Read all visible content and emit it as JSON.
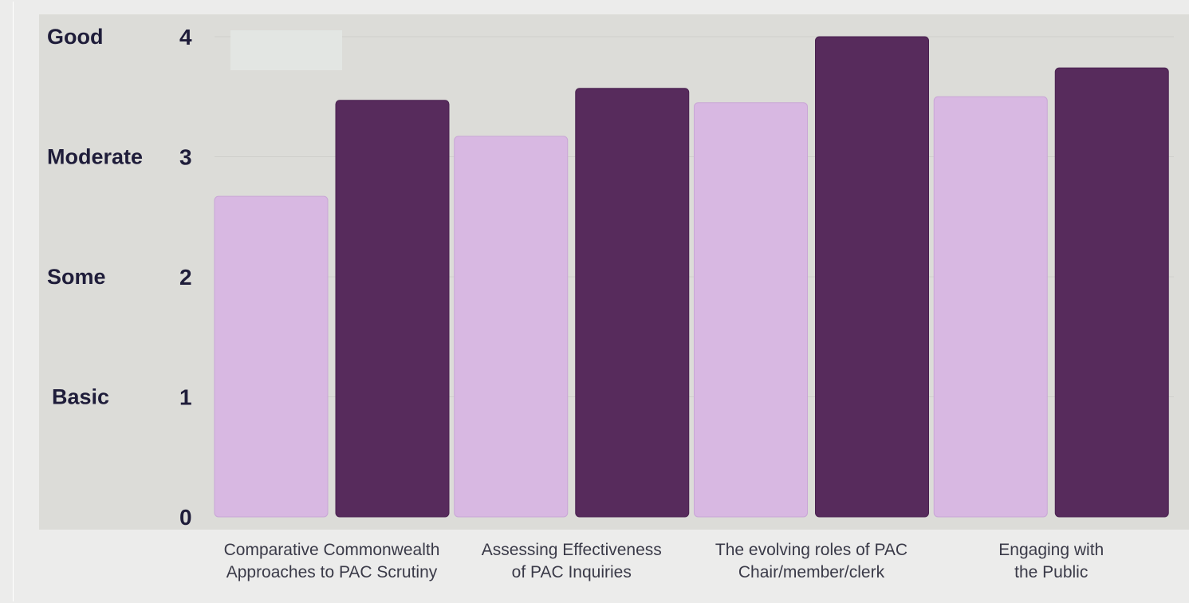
{
  "chart_data": {
    "type": "bar",
    "categories": [
      [
        "Comparative Commonwealth",
        "Approaches to PAC Scrutiny"
      ],
      [
        "Assessing Effectiveness",
        "of PAC Inquiries"
      ],
      [
        "The evolving roles of PAC",
        "Chair/member/clerk"
      ],
      [
        "Engaging with",
        "the Public"
      ]
    ],
    "series": [
      {
        "values": [
          2.67,
          3.17,
          3.45,
          3.5
        ],
        "color": "#d8b8e2"
      },
      {
        "values": [
          3.47,
          3.57,
          4.0,
          3.74
        ],
        "color": "#572b5c"
      }
    ],
    "ylim": [
      0,
      4
    ],
    "yticks": [
      0,
      1,
      2,
      3,
      4
    ],
    "level_labels": [
      {
        "value": 4,
        "label": "Good"
      },
      {
        "value": 3,
        "label": "Moderate"
      },
      {
        "value": 2,
        "label": "Some"
      },
      {
        "value": 1,
        "label": "Basic"
      }
    ],
    "grid": true,
    "legend": "none",
    "plot_background": "#dcdcd8"
  }
}
